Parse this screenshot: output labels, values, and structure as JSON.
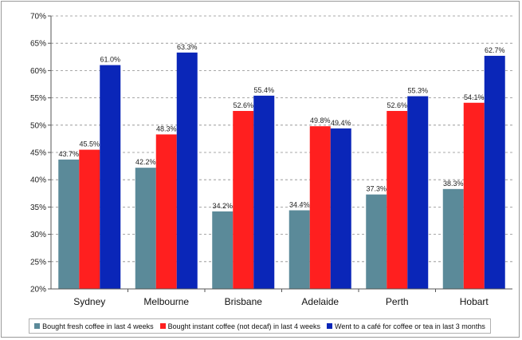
{
  "chart_data": {
    "type": "bar",
    "categories": [
      "Sydney",
      "Melbourne",
      "Brisbane",
      "Adelaide",
      "Perth",
      "Hobart"
    ],
    "series": [
      {
        "name": "Bought fresh coffee in last 4 weeks",
        "color": "#5b8a99",
        "values": [
          43.7,
          42.2,
          34.2,
          34.4,
          37.3,
          38.3
        ],
        "labels": [
          "43.7%",
          "42.2%",
          "34.2%",
          "34.4%",
          "37.3%",
          "38.3%"
        ]
      },
      {
        "name": "Bought instant coffee (not decaf) in last 4 weeks",
        "color": "#ff1f1f",
        "values": [
          45.5,
          48.3,
          52.6,
          49.8,
          52.6,
          54.1
        ],
        "labels": [
          "45.5%",
          "48.3%",
          "52.6%",
          "49.8%",
          "52.6%",
          "54.1%"
        ]
      },
      {
        "name": "Went to a café for coffee or tea in last 3 months",
        "color": "#0a26b8",
        "values": [
          61.0,
          63.3,
          55.4,
          49.4,
          55.3,
          62.7
        ],
        "labels": [
          "61.0%",
          "63.3%",
          "55.4%",
          "49.4%",
          "55.3%",
          "62.7%"
        ]
      }
    ],
    "ylim": [
      20,
      70
    ],
    "yticks": [
      20,
      25,
      30,
      35,
      40,
      45,
      50,
      55,
      60,
      65,
      70
    ],
    "ytick_labels": [
      "20%",
      "25%",
      "30%",
      "35%",
      "40%",
      "45%",
      "50%",
      "55%",
      "60%",
      "65%",
      "70%"
    ],
    "grid": "horizontal dashed",
    "legend_position": "bottom"
  }
}
